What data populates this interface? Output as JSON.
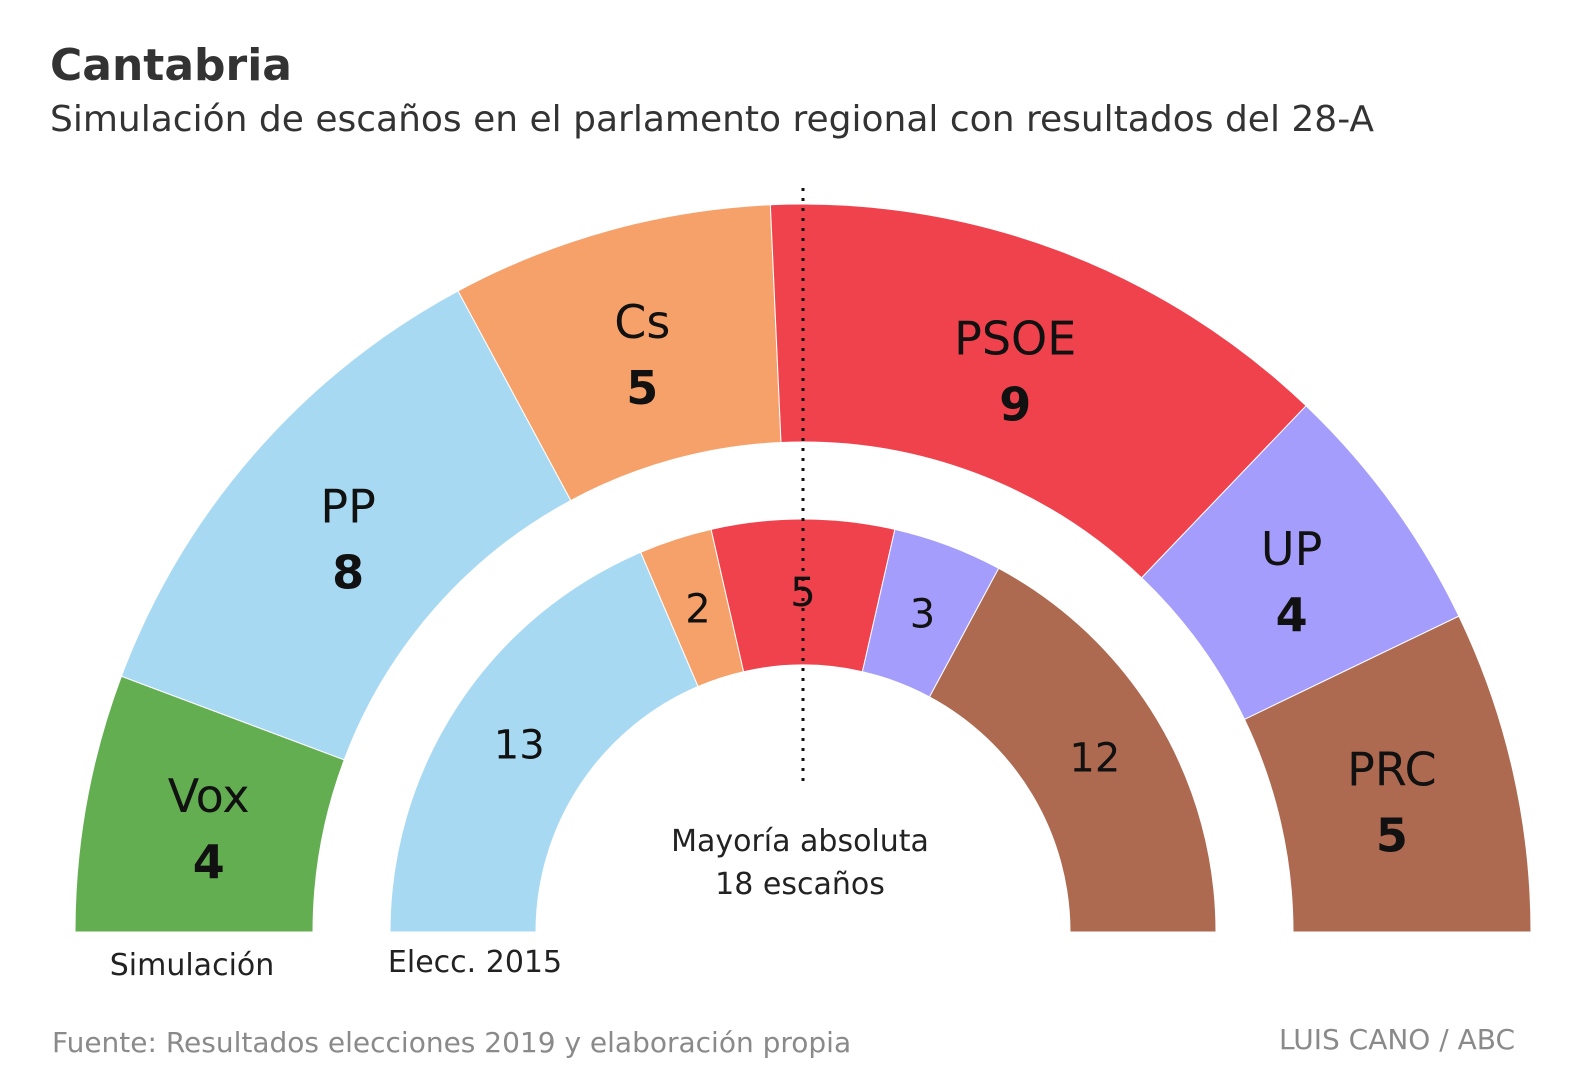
{
  "title": "Cantabria",
  "subtitle": "Simulación de escaños en el parlamento regional con resultados del 28-A",
  "chart_data": {
    "type": "parliament-hemicycle",
    "total_seats": 35,
    "rings": [
      {
        "label": "Simulación",
        "series": [
          {
            "name": "Vox",
            "seats": 4,
            "color": "#64ae52"
          },
          {
            "name": "PP",
            "seats": 8,
            "color": "#a8d9f3"
          },
          {
            "name": "Cs",
            "seats": 5,
            "color": "#f6a16a"
          },
          {
            "name": "PSOE",
            "seats": 9,
            "color": "#ef424c"
          },
          {
            "name": "UP",
            "seats": 4,
            "color": "#a59dfb"
          },
          {
            "name": "PRC",
            "seats": 5,
            "color": "#ad6a51"
          }
        ]
      },
      {
        "label": "Elecc. 2015",
        "series": [
          {
            "name": "PP",
            "seats": 13,
            "color": "#a8d9f3"
          },
          {
            "name": "Cs",
            "seats": 2,
            "color": "#f6a16a"
          },
          {
            "name": "PSOE",
            "seats": 5,
            "color": "#ef424c"
          },
          {
            "name": "UP",
            "seats": 3,
            "color": "#a59dfb"
          },
          {
            "name": "PRC",
            "seats": 12,
            "color": "#ad6a51"
          }
        ]
      }
    ],
    "majority": {
      "line1": "Mayoría absoluta",
      "line2": "18 escaños",
      "seats": 18
    }
  },
  "footer": {
    "source": "Fuente: Resultados elecciones 2019 y elaboración propia",
    "credit": "LUIS CANO / ABC"
  }
}
